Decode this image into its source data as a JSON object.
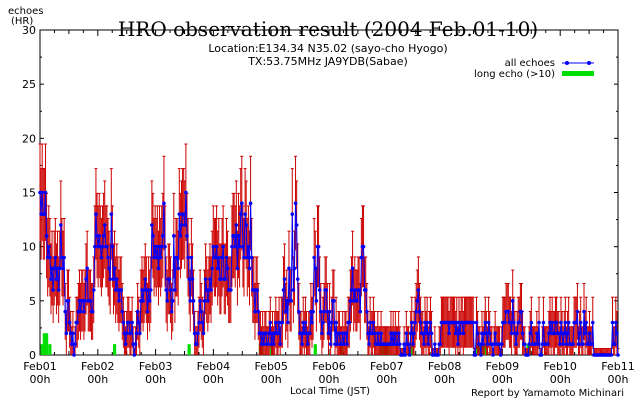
{
  "chart_data": {
    "type": "line",
    "title": "HRO observation result (2004 Feb.01-10)",
    "subtitle_location": "Location:E134.34 N35.02 (sayo-cho Hyogo)",
    "subtitle_tx": "TX:53.75MHz JA9YDB(Sabae)",
    "ylabel_line1": "echoes",
    "ylabel_line2": "(HR)",
    "xlabel": "Local Time (JST)",
    "credit": "Report by Yamamoto Michinari",
    "ylim": [
      0,
      30
    ],
    "y_ticks": [
      0,
      5,
      10,
      15,
      20,
      25,
      30
    ],
    "xlim_days": [
      0,
      10
    ],
    "x_ticks": [
      {
        "top": "Feb01",
        "bottom": "00h"
      },
      {
        "top": "Feb02",
        "bottom": "00h"
      },
      {
        "top": "Feb03",
        "bottom": "00h"
      },
      {
        "top": "Feb04",
        "bottom": "00h"
      },
      {
        "top": "Feb05",
        "bottom": "00h"
      },
      {
        "top": "Feb06",
        "bottom": "00h"
      },
      {
        "top": "Feb07",
        "bottom": "00h"
      },
      {
        "top": "Feb08",
        "bottom": "00h"
      },
      {
        "top": "Feb09",
        "bottom": "00h"
      },
      {
        "top": "Feb10",
        "bottom": "00h"
      },
      {
        "top": "Feb11",
        "bottom": "00h"
      }
    ],
    "grid": false,
    "legend_position": "top-right",
    "series": [
      {
        "name": "all echoes",
        "color": "#0000ff",
        "errorbar_color": "#cc0000",
        "values": [
          15,
          13,
          15,
          13,
          13,
          15,
          11,
          9,
          10,
          9,
          7,
          8,
          6,
          8,
          9,
          7,
          8,
          6,
          8,
          12,
          9,
          8,
          9,
          4,
          2,
          5,
          5,
          3,
          2,
          1,
          2,
          0,
          1,
          3,
          3,
          4,
          5,
          4,
          5,
          5,
          4,
          5,
          7,
          8,
          5,
          5,
          5,
          4,
          4,
          6,
          10,
          13,
          11,
          10,
          11,
          10,
          9,
          10,
          11,
          12,
          10,
          10,
          9,
          8,
          7,
          13,
          10,
          7,
          8,
          6,
          7,
          6,
          5,
          6,
          6,
          4,
          3,
          2,
          1,
          2,
          3,
          3,
          2,
          2,
          3,
          1,
          0,
          1,
          2,
          4,
          3,
          2,
          5,
          6,
          5,
          6,
          7,
          6,
          4,
          6,
          5,
          6,
          12,
          11,
          9,
          10,
          9,
          10,
          8,
          10,
          9,
          10,
          11,
          14,
          10,
          6,
          5,
          7,
          7,
          6,
          4,
          5,
          11,
          6,
          9,
          9,
          8,
          13,
          11,
          12,
          13,
          13,
          12,
          15,
          11,
          9,
          7,
          5,
          9,
          7,
          5,
          2,
          1,
          1,
          2,
          3,
          5,
          4,
          3,
          2,
          5,
          7,
          6,
          5,
          6,
          7,
          6,
          8,
          10,
          9,
          9,
          10,
          8,
          9,
          7,
          7,
          9,
          10,
          7,
          7,
          9,
          8,
          6,
          6,
          6,
          10,
          11,
          11,
          10,
          12,
          8,
          11,
          10,
          13,
          14,
          10,
          9,
          13,
          12,
          9,
          10,
          8,
          14,
          9,
          6,
          6,
          4,
          6,
          6,
          4,
          2,
          2,
          1,
          2,
          1,
          2,
          2,
          1,
          1,
          2,
          3,
          1,
          2,
          1,
          2,
          3,
          2,
          2,
          3,
          1,
          3,
          3,
          6,
          7,
          4,
          5,
          3,
          8,
          5,
          5,
          13,
          6,
          8,
          14,
          12,
          7,
          4,
          2,
          2,
          1,
          3,
          2,
          3,
          2,
          1,
          2,
          2,
          4,
          3,
          4,
          9,
          8,
          5,
          10,
          10,
          6,
          4,
          2,
          3,
          4,
          6,
          6,
          4,
          2,
          4,
          1,
          3,
          5,
          5,
          1,
          3,
          1,
          2,
          2,
          1,
          1,
          2,
          1,
          2,
          2,
          1,
          3,
          3,
          5,
          6,
          8,
          5,
          6,
          5,
          5,
          6,
          6,
          4,
          9,
          10,
          10,
          6,
          6,
          4,
          2,
          1,
          3,
          2,
          2,
          3,
          2,
          1,
          1,
          2,
          1,
          1,
          2,
          1,
          1,
          1,
          1,
          1,
          1,
          1,
          1,
          2,
          1,
          2,
          1,
          2,
          1,
          1,
          2,
          1,
          0,
          0,
          0,
          1,
          0,
          2,
          1,
          1,
          0,
          2,
          3,
          1,
          2,
          3,
          4,
          5,
          6,
          4,
          3,
          2,
          2,
          1,
          3,
          2,
          3,
          1,
          2,
          3,
          2,
          0,
          0,
          1,
          0,
          0,
          0,
          1,
          1,
          3,
          3,
          3,
          3,
          3,
          3,
          3,
          2,
          3,
          3,
          3,
          3,
          3,
          2,
          3,
          1,
          3,
          2,
          3,
          3,
          2,
          3,
          3,
          3,
          3,
          3,
          3,
          3,
          3,
          3,
          0,
          0,
          3,
          2,
          1,
          1,
          0,
          2,
          1,
          2,
          3,
          2,
          1,
          3,
          2,
          1,
          1,
          0,
          1,
          2,
          1,
          1,
          1,
          1,
          0,
          1,
          3,
          3,
          3,
          4,
          4,
          4,
          3,
          3,
          2,
          5,
          3,
          2,
          1,
          2,
          3,
          3,
          4,
          4,
          2,
          1,
          1,
          0,
          0,
          0,
          1,
          2,
          3,
          1,
          1,
          1,
          1,
          2,
          1,
          3,
          0,
          0,
          1,
          3,
          1,
          1,
          1,
          1,
          2,
          3,
          2,
          3,
          2,
          2,
          3,
          3,
          2,
          2,
          1,
          3,
          2,
          1,
          2,
          3,
          1,
          2,
          3,
          1,
          1,
          1,
          1,
          3,
          3,
          3,
          4,
          1,
          2,
          3,
          1,
          1,
          4,
          2,
          3,
          1,
          1,
          2,
          1,
          1,
          3,
          0,
          0,
          0,
          0,
          0,
          0,
          0,
          0,
          0,
          0,
          0,
          0,
          0,
          0,
          0,
          0,
          0,
          3,
          1,
          1,
          3,
          2,
          0
        ],
        "note": "hourly rate from 0 to 240 h (step 1 h)"
      },
      {
        "name": "long echo (>10)",
        "color": "#00dd00",
        "values": [
          0,
          0,
          1,
          0,
          2,
          2,
          2,
          0,
          0,
          1,
          0,
          0,
          0,
          0,
          0,
          0,
          0,
          0,
          0,
          0,
          0,
          0,
          0,
          0,
          0,
          0,
          0,
          0,
          0,
          0,
          0,
          0,
          0,
          0,
          0,
          0,
          0,
          0,
          0,
          0,
          0,
          0,
          0,
          0,
          0,
          0,
          0,
          0,
          0,
          0,
          0,
          0,
          0,
          0,
          0,
          0,
          0,
          0,
          0,
          0,
          0,
          0,
          0,
          0,
          0,
          0,
          0,
          0,
          1,
          0,
          0,
          0,
          0,
          0,
          0,
          0,
          0,
          0,
          0,
          0,
          0,
          0,
          0,
          0,
          0,
          0,
          0,
          0,
          0,
          0,
          0,
          0,
          0,
          0,
          0,
          0,
          0,
          0,
          0,
          0,
          0,
          0,
          0,
          0,
          0,
          0,
          0,
          0,
          0,
          0,
          0,
          0,
          0,
          0,
          0,
          0,
          0,
          0,
          0,
          0,
          0,
          0,
          0,
          0,
          0,
          0,
          0,
          0,
          0,
          0,
          0,
          0,
          0,
          0,
          0,
          0,
          1,
          0,
          0,
          0,
          0,
          0,
          0,
          0,
          0,
          0,
          0,
          0,
          0,
          0,
          0,
          0,
          0,
          0,
          0,
          0,
          0,
          0,
          0,
          0,
          0,
          0,
          0,
          0,
          0,
          0,
          0,
          0,
          0,
          0,
          0,
          0,
          0,
          0,
          0,
          0,
          0,
          0,
          0,
          0,
          0,
          0,
          0,
          0,
          0,
          0,
          0,
          0,
          0,
          0,
          0,
          0,
          0,
          0,
          0,
          0,
          0,
          0,
          0,
          0,
          0,
          1,
          1,
          0,
          0,
          0,
          0,
          0,
          0,
          0,
          0,
          1,
          0,
          0,
          0,
          0,
          0,
          0,
          0,
          0,
          0,
          0,
          0,
          0,
          0,
          0,
          0,
          0,
          0,
          0,
          0,
          0,
          0,
          0,
          0,
          0,
          0,
          0,
          0,
          0,
          0,
          0,
          0,
          0,
          0,
          0,
          0,
          0,
          0,
          0,
          0,
          1,
          0,
          0,
          0,
          0,
          0,
          0,
          0,
          0,
          0,
          0,
          0,
          0,
          0,
          0,
          0,
          0,
          0,
          0,
          0,
          0,
          0,
          0,
          0,
          1,
          0,
          0,
          0,
          0,
          0,
          0,
          0,
          0,
          0,
          0,
          0,
          0,
          0,
          0,
          0,
          0,
          0,
          0,
          0,
          0,
          0,
          0,
          0,
          0,
          0,
          0,
          0,
          0,
          0,
          0,
          0,
          0,
          0,
          0,
          0,
          0,
          1,
          1,
          0,
          0,
          1,
          1,
          0,
          0,
          0,
          0,
          0,
          0,
          0,
          0,
          0,
          0,
          0,
          0,
          0,
          0,
          0,
          0,
          0,
          0,
          0,
          0,
          0,
          1,
          0,
          0,
          0,
          0,
          0,
          0,
          0,
          0,
          0,
          0,
          0,
          0,
          0,
          0,
          0,
          0,
          0,
          0,
          0,
          0,
          0,
          0,
          0,
          0,
          0,
          0,
          0,
          0,
          0,
          0,
          0,
          0,
          0,
          0,
          0,
          0,
          0,
          0,
          0,
          0,
          0,
          0,
          0,
          0,
          0,
          0,
          0,
          0,
          0,
          0,
          0,
          0,
          0,
          0,
          0,
          0,
          0,
          0,
          0,
          1,
          0,
          1,
          0,
          1,
          1,
          0,
          1,
          0,
          0,
          0,
          0,
          0,
          0,
          0,
          0,
          0,
          0,
          0,
          0,
          0,
          0,
          0,
          0,
          0,
          0,
          0,
          0,
          0,
          0,
          0,
          0,
          0,
          0,
          0,
          0,
          0,
          0,
          0,
          0,
          0,
          0,
          0,
          0,
          0,
          0,
          1,
          1,
          0,
          0,
          0,
          0,
          0,
          0,
          0,
          0,
          0,
          0,
          0,
          0,
          0,
          0,
          0,
          0,
          0,
          0,
          0,
          0,
          0,
          0,
          0,
          0,
          0,
          0,
          0,
          0,
          0,
          0,
          0,
          0,
          0,
          0,
          0,
          0,
          0,
          0,
          0,
          0,
          0,
          0,
          0,
          0,
          0,
          0,
          0,
          0,
          0,
          0,
          0,
          0,
          0,
          0,
          0,
          0,
          0,
          0,
          0,
          0,
          0,
          0,
          0,
          0,
          0,
          0,
          0,
          0,
          0,
          0,
          0,
          0,
          0,
          0,
          0,
          0,
          0,
          0,
          0,
          0,
          0,
          0,
          0,
          0,
          0,
          0,
          0,
          0,
          0,
          0,
          0,
          0,
          0,
          0,
          0,
          0,
          0,
          0,
          0,
          0,
          0,
          0,
          0,
          0,
          0,
          0,
          0,
          0,
          0,
          0,
          0,
          0,
          0,
          0,
          0,
          0,
          0,
          0,
          0,
          0,
          0,
          0,
          0,
          0,
          0,
          0,
          0,
          0,
          0,
          0,
          0,
          0,
          0,
          0,
          0,
          0,
          0
        ]
      }
    ]
  }
}
